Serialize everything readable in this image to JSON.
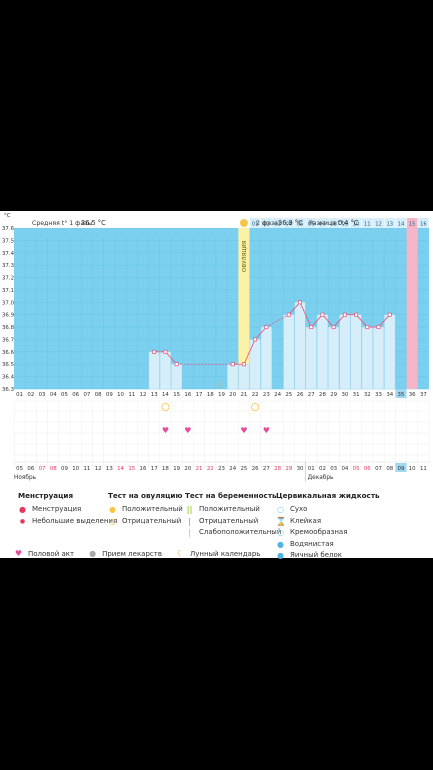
{
  "chart_data": {
    "type": "line",
    "ylabel": "°C",
    "ylim": [
      36.3,
      37.6
    ],
    "yticks": [
      37.6,
      37.5,
      37.4,
      37.3,
      37.2,
      37.1,
      37.0,
      36.9,
      36.8,
      36.7,
      36.6,
      36.5,
      36.4,
      36.3
    ],
    "header": {
      "phase1": "Средняя t° 1 фазы",
      "phase1_value": "36.5 °C",
      "phase2": "2 фаза",
      "phase2_value": "36.9 °C",
      "diff": "Разница t°",
      "diff_value": "0.4 °C"
    },
    "ovulation_label": "ОВУЛЯЦИЯ",
    "cycle_days_top": [
      "01",
      "02",
      "03",
      "04",
      "05",
      "06",
      "07",
      "08",
      "09",
      "10",
      "11",
      "12",
      "13",
      "14",
      "15",
      "16"
    ],
    "cycle_days_axis": [
      "01",
      "02",
      "03",
      "04",
      "05",
      "06",
      "07",
      "08",
      "09",
      "10",
      "11",
      "12",
      "13",
      "14",
      "15",
      "16",
      "17",
      "18",
      "19",
      "20",
      "21",
      "22",
      "23",
      "24",
      "25",
      "26",
      "27",
      "28",
      "29",
      "30",
      "31",
      "32",
      "33",
      "34",
      "35",
      "36",
      "37"
    ],
    "dates": [
      "05",
      "06",
      "07",
      "08",
      "09",
      "10",
      "11",
      "12",
      "13",
      "14",
      "15",
      "16",
      "17",
      "18",
      "19",
      "20",
      "21",
      "22",
      "23",
      "24",
      "25",
      "26",
      "27",
      "28",
      "29",
      "30",
      "01",
      "02",
      "03",
      "04",
      "05",
      "06",
      "07",
      "08",
      "09",
      "10",
      "11"
    ],
    "date_red": [
      2,
      3,
      9,
      10,
      16,
      17,
      23,
      24,
      30,
      31
    ],
    "months": [
      "Ноябрь",
      "Декабрь"
    ],
    "temperatures": [
      null,
      null,
      null,
      null,
      null,
      null,
      null,
      null,
      null,
      null,
      null,
      null,
      36.6,
      36.6,
      36.5,
      null,
      null,
      null,
      null,
      36.5,
      36.5,
      36.7,
      36.8,
      null,
      36.9,
      37.0,
      36.8,
      36.9,
      36.8,
      36.9,
      36.9,
      36.8,
      36.8,
      36.9,
      null,
      null,
      null
    ],
    "highlight_day_index": 34,
    "pink_day_index": 35,
    "ovulation_day_index": 20,
    "ovulation_test_positive_days": [
      13,
      21
    ],
    "intercourse_days": [
      13,
      15,
      20,
      22
    ],
    "moon_day_index": 18
  },
  "legend": {
    "menstruation": {
      "title": "Менструация",
      "items": [
        "Менструация",
        "Небольшие выделения"
      ]
    },
    "ovulation_test": {
      "title": "Тест на овуляцию",
      "items": [
        "Положительный",
        "Отрицательный"
      ]
    },
    "pregnancy_test": {
      "title": "Тест на беременность",
      "items": [
        "Положительный",
        "Отрицательный",
        "Слабоположительный"
      ]
    },
    "cervical": {
      "title": "Цервикальная жидкость",
      "items": [
        "Сухо",
        "Клейкая",
        "Кремообразная",
        "Водянистая",
        "Яичный белок"
      ]
    },
    "bottom": [
      "Половой акт",
      "Прием лекарств",
      "Лунный календарь"
    ]
  },
  "colors": {
    "background": "#7ad0ee",
    "bar": "#d5eefa",
    "ovulation": "#fbf2a8",
    "pink": "#f7b6c8",
    "line": "#e8507a",
    "highlight": "#9fd8f0",
    "red_date": "#e23a5e"
  }
}
